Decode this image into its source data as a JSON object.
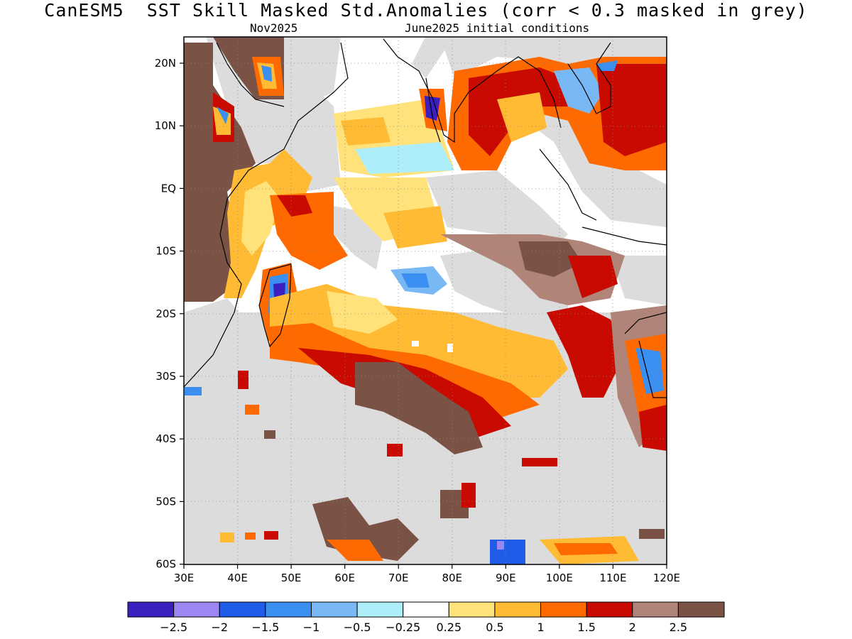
{
  "header": {
    "title": "CanESM5  SST Skill Masked Std.Anomalies (corr < 0.3 masked in grey)",
    "lead_month": "Nov2025",
    "init": "June2025 initial conditions"
  },
  "map": {
    "region": "Indian Ocean",
    "mask_color": "#dcdcdc",
    "lat_labels": [
      "20N",
      "10N",
      "EQ",
      "10S",
      "20S",
      "30S",
      "40S",
      "50S",
      "60S"
    ],
    "lon_labels": [
      "30E",
      "40E",
      "50E",
      "60E",
      "70E",
      "80E",
      "90E",
      "100E",
      "110E",
      "120E"
    ]
  },
  "colorbar": {
    "colors": [
      "#3b1fbf",
      "#9b86f2",
      "#1f5de8",
      "#3a8ff0",
      "#78b8f5",
      "#aeeefa",
      "#ffffff",
      "#ffe27a",
      "#ffbb33",
      "#ff6a00",
      "#c80a00",
      "#b08478",
      "#7a5246"
    ],
    "labels": [
      "−2.5",
      "−2",
      "−1.5",
      "−1",
      "−0.5",
      "−0.25",
      "0.25",
      "0.5",
      "1",
      "1.5",
      "2",
      "2.5"
    ]
  }
}
